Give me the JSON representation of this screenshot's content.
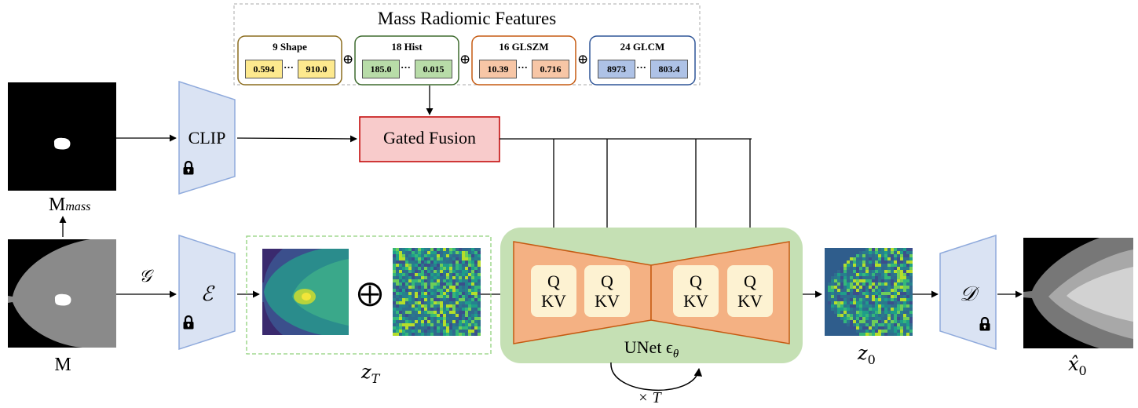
{
  "features": {
    "title": "Mass Radiomic Features",
    "groups": [
      {
        "title": "9 Shape",
        "first": "0.594",
        "dots": "···",
        "last": "910.0",
        "border": "#8c6d1f",
        "fill": "#fde98e"
      },
      {
        "title": "18 Hist",
        "first": "185.0",
        "dots": "···",
        "last": "0.015",
        "border": "#3e6b2f",
        "fill": "#b8dca8"
      },
      {
        "title": "16 GLSZM",
        "first": "10.39",
        "dots": "···",
        "last": "0.716",
        "border": "#c55a11",
        "fill": "#f7c6a6"
      },
      {
        "title": "24 GLCM",
        "first": "8973",
        "dots": "···",
        "last": "803.4",
        "border": "#2f5597",
        "fill": "#aec2e6"
      }
    ],
    "concat_symbol": "⊕"
  },
  "nodes": {
    "clip": "CLIP",
    "gated_fusion": "Gated Fusion",
    "encoder": "ℰ",
    "decoder": "𝒟",
    "unet": "UNet ϵ",
    "unet_sub": "θ",
    "q": "Q",
    "kv": "KV",
    "add_symbol": "⨁"
  },
  "labels": {
    "m_mass": "M",
    "m_mass_sub": "mass",
    "m": "M",
    "g": "𝒢",
    "z_t": "z",
    "z_t_sub": "T",
    "z_0": "z",
    "z_0_sub": "0",
    "x_hat": "x̂",
    "x_hat_sub": "0",
    "loop": "× T"
  },
  "icons": [
    "lock-icon"
  ],
  "colors": {
    "trapezoid_fill": "#dae3f3",
    "trapezoid_border": "#8faadc",
    "gated_fill": "#f8cbcb",
    "gated_border": "#c00000",
    "unet_bg": "#c5e0b4",
    "unet_fill": "#f4b183",
    "unet_border": "#c55a11",
    "qkv_fill": "#fdf2d2"
  }
}
